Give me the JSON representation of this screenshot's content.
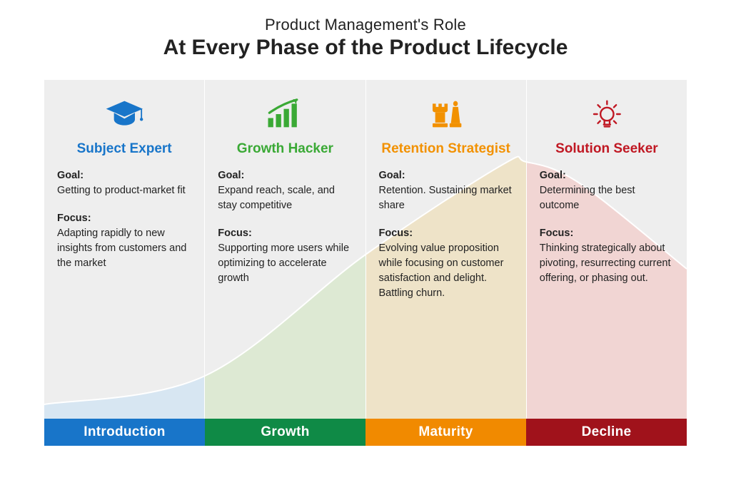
{
  "heading": {
    "subtitle": "Product Management's Role",
    "title": "At Every Phase of the Product Lifecycle"
  },
  "layout": {
    "inner_width": 900,
    "inner_height": 475,
    "background": "#eeeeee",
    "divider_color": "#ffffff"
  },
  "curve": {
    "type": "area",
    "xlim": [
      0,
      900
    ],
    "ylim": [
      0,
      475
    ],
    "points": [
      {
        "x": 0,
        "y": 20
      },
      {
        "x": 225,
        "y": 60
      },
      {
        "x": 450,
        "y": 230
      },
      {
        "x": 640,
        "y": 355
      },
      {
        "x": 675,
        "y": 360
      },
      {
        "x": 750,
        "y": 330
      },
      {
        "x": 900,
        "y": 210
      }
    ],
    "stroke_color": "#ffffff",
    "stroke_width": 2,
    "segment_fills": [
      "#d7e6f2",
      "#dde9d3",
      "#eee3c8",
      "#f1d5d3"
    ],
    "segment_opacity": 1.0
  },
  "phases": [
    {
      "id": "introduction",
      "phase_label": "Introduction",
      "role_title": "Subject Expert",
      "role_color": "#1875c9",
      "bar_color": "#1875c9",
      "icon": "grad-cap",
      "goal_label": "Goal:",
      "goal_text": "Getting to product-market fit",
      "focus_label": "Focus:",
      "focus_text": "Adapting rapidly to new insights from customers and the market"
    },
    {
      "id": "growth",
      "phase_label": "Growth",
      "role_title": "Growth Hacker",
      "role_color": "#3aa935",
      "bar_color": "#0f8a46",
      "icon": "growth-bars",
      "goal_label": "Goal:",
      "goal_text": "Expand reach, scale, and stay competitive",
      "focus_label": "Focus:",
      "focus_text": "Supporting more users while optimizing to accelerate growth"
    },
    {
      "id": "maturity",
      "phase_label": "Maturity",
      "role_title": "Retention Strategist",
      "role_color": "#f29100",
      "bar_color": "#f18a00",
      "icon": "chess",
      "goal_label": "Goal:",
      "goal_text": "Retention. Sustaining market share",
      "focus_label": "Focus:",
      "focus_text": "Evolving value proposition while focusing on customer satisfaction and delight. Battling churn."
    },
    {
      "id": "decline",
      "phase_label": "Decline",
      "role_title": "Solution Seeker",
      "role_color": "#c01823",
      "bar_color": "#a0121b",
      "icon": "lightbulb",
      "goal_label": "Goal:",
      "goal_text": "Determining the best outcome",
      "focus_label": "Focus:",
      "focus_text": "Thinking strategically about pivoting, resurrecting current offering, or phasing out."
    }
  ]
}
